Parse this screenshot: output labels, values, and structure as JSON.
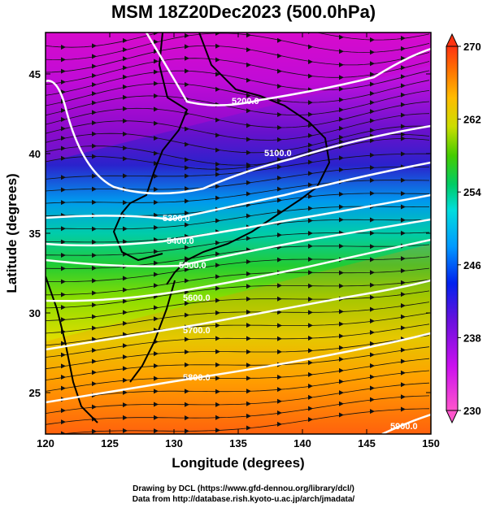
{
  "title": "MSM 18Z20Dec2023 (500.0hPa)",
  "x_axis": {
    "title": "Longitude (degrees)",
    "ticks": [
      "120",
      "125",
      "130",
      "135",
      "140",
      "145",
      "150"
    ],
    "range": [
      120,
      150
    ]
  },
  "y_axis": {
    "title": "Latitude  (degrees)",
    "ticks": [
      "25",
      "30",
      "35",
      "40",
      "45"
    ],
    "range": [
      22.4,
      47.6
    ]
  },
  "colorbar": {
    "ticks": [
      "230",
      "238",
      "246",
      "254",
      "262",
      "270"
    ],
    "range": [
      230,
      270
    ],
    "colors": [
      "#ff55cc",
      "#dd22ee",
      "#9900dd",
      "#4422cc",
      "#0033ee",
      "#0099ff",
      "#00dddd",
      "#00cc66",
      "#33cc00",
      "#99dd00",
      "#eeee00",
      "#ffbb00",
      "#ff8800",
      "#ff5500",
      "#ff2200"
    ]
  },
  "contours": [
    {
      "label": "5100.0"
    },
    {
      "label": "5200.0"
    },
    {
      "label": "5300.0"
    },
    {
      "label": "5400.0"
    },
    {
      "label": "5500.0"
    },
    {
      "label": "5600.0"
    },
    {
      "label": "5700.0"
    },
    {
      "label": "5800.0"
    },
    {
      "label": "5900.0"
    }
  ],
  "footer": {
    "line1": "Drawing by DCL (https://www.gfd-dennou.org/library/dcl/)",
    "line2": "Data from http://database.rish.kyoto-u.ac.jp/arch/jmadata/"
  }
}
